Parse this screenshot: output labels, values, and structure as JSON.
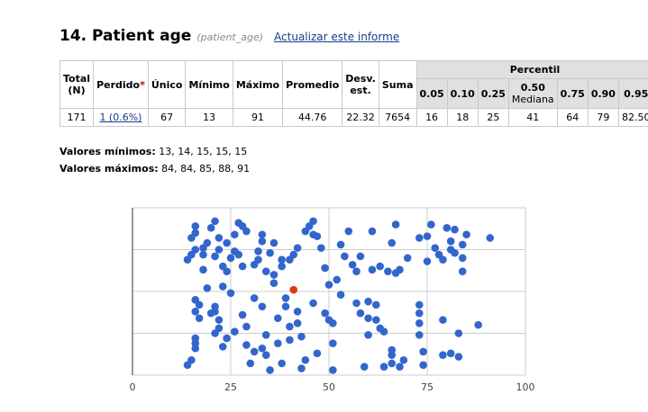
{
  "header": {
    "title": "14. Patient age",
    "variable_name": "(patient_age)",
    "update_link": "Actualizar este informe"
  },
  "table": {
    "headers": {
      "total": "Total (N)",
      "missing": "Perdido",
      "missing_star": "*",
      "unique": "Único",
      "min": "Mínimo",
      "max": "Máximo",
      "mean": "Promedio",
      "sd": "Desv. est.",
      "sum": "Suma",
      "percentile": "Percentil",
      "q05": "0.05",
      "q10": "0.10",
      "q25": "0.25",
      "q50": "0.50",
      "q50_sub": "Mediana",
      "q75": "0.75",
      "q90": "0.90",
      "q95": "0.95"
    },
    "values": {
      "total": "171",
      "missing": "1 (0.6%)",
      "unique": "67",
      "min": "13",
      "max": "91",
      "mean": "44.76",
      "sd": "22.32",
      "sum": "7654",
      "q05": "16",
      "q10": "18",
      "q25": "25",
      "q50": "41",
      "q75": "64",
      "q90": "79",
      "q95": "82.50"
    }
  },
  "extremes": {
    "min_label": "Valores mínimos:",
    "min_values": "13, 14, 15, 15, 15",
    "max_label": "Valores máximos:",
    "max_values": "84, 84, 85, 88, 91"
  },
  "chart_data": {
    "type": "scatter",
    "xlim": [
      0,
      100
    ],
    "xticks": [
      "0",
      "25",
      "50",
      "75",
      "100"
    ],
    "grid": true,
    "point_color": "#3366cc",
    "highlight_color": "#dc3912",
    "highlight": {
      "x": 41,
      "y": 0.51
    },
    "points": [
      {
        "x": 14,
        "y": 0.06
      },
      {
        "x": 15,
        "y": 0.09
      },
      {
        "x": 16,
        "y": 0.16
      },
      {
        "x": 16,
        "y": 0.19
      },
      {
        "x": 16,
        "y": 0.22
      },
      {
        "x": 17,
        "y": 0.34
      },
      {
        "x": 16,
        "y": 0.38
      },
      {
        "x": 17,
        "y": 0.42
      },
      {
        "x": 16,
        "y": 0.45
      },
      {
        "x": 14,
        "y": 0.69
      },
      {
        "x": 15,
        "y": 0.72
      },
      {
        "x": 16,
        "y": 0.75
      },
      {
        "x": 15,
        "y": 0.82
      },
      {
        "x": 16,
        "y": 0.85
      },
      {
        "x": 16,
        "y": 0.89
      },
      {
        "x": 19,
        "y": 0.52
      },
      {
        "x": 18,
        "y": 0.63
      },
      {
        "x": 18,
        "y": 0.72
      },
      {
        "x": 18,
        "y": 0.76
      },
      {
        "x": 19,
        "y": 0.79
      },
      {
        "x": 20,
        "y": 0.37
      },
      {
        "x": 21,
        "y": 0.38
      },
      {
        "x": 21,
        "y": 0.41
      },
      {
        "x": 22,
        "y": 0.28
      },
      {
        "x": 21,
        "y": 0.25
      },
      {
        "x": 22,
        "y": 0.33
      },
      {
        "x": 20,
        "y": 0.88
      },
      {
        "x": 21,
        "y": 0.92
      },
      {
        "x": 22,
        "y": 0.82
      },
      {
        "x": 22,
        "y": 0.75
      },
      {
        "x": 21,
        "y": 0.71
      },
      {
        "x": 23,
        "y": 0.65
      },
      {
        "x": 24,
        "y": 0.62
      },
      {
        "x": 24,
        "y": 0.79
      },
      {
        "x": 23,
        "y": 0.53
      },
      {
        "x": 23,
        "y": 0.17
      },
      {
        "x": 24,
        "y": 0.22
      },
      {
        "x": 26,
        "y": 0.26
      },
      {
        "x": 25,
        "y": 0.49
      },
      {
        "x": 25,
        "y": 0.7
      },
      {
        "x": 26,
        "y": 0.74
      },
      {
        "x": 26,
        "y": 0.84
      },
      {
        "x": 27,
        "y": 0.72
      },
      {
        "x": 28,
        "y": 0.65
      },
      {
        "x": 27,
        "y": 0.91
      },
      {
        "x": 28,
        "y": 0.89
      },
      {
        "x": 29,
        "y": 0.86
      },
      {
        "x": 28,
        "y": 0.36
      },
      {
        "x": 29,
        "y": 0.29
      },
      {
        "x": 29,
        "y": 0.18
      },
      {
        "x": 30,
        "y": 0.07
      },
      {
        "x": 31,
        "y": 0.14
      },
      {
        "x": 31,
        "y": 0.46
      },
      {
        "x": 31,
        "y": 0.66
      },
      {
        "x": 32,
        "y": 0.69
      },
      {
        "x": 32,
        "y": 0.74
      },
      {
        "x": 33,
        "y": 0.84
      },
      {
        "x": 33,
        "y": 0.8
      },
      {
        "x": 34,
        "y": 0.62
      },
      {
        "x": 33,
        "y": 0.41
      },
      {
        "x": 34,
        "y": 0.24
      },
      {
        "x": 33,
        "y": 0.16
      },
      {
        "x": 34,
        "y": 0.12
      },
      {
        "x": 35,
        "y": 0.03
      },
      {
        "x": 36,
        "y": 0.55
      },
      {
        "x": 36,
        "y": 0.6
      },
      {
        "x": 36,
        "y": 0.79
      },
      {
        "x": 35,
        "y": 0.73
      },
      {
        "x": 37,
        "y": 0.34
      },
      {
        "x": 38,
        "y": 0.07
      },
      {
        "x": 37,
        "y": 0.19
      },
      {
        "x": 38,
        "y": 0.65
      },
      {
        "x": 38,
        "y": 0.69
      },
      {
        "x": 39,
        "y": 0.46
      },
      {
        "x": 39,
        "y": 0.41
      },
      {
        "x": 40,
        "y": 0.29
      },
      {
        "x": 40,
        "y": 0.21
      },
      {
        "x": 40,
        "y": 0.69
      },
      {
        "x": 41,
        "y": 0.72
      },
      {
        "x": 42,
        "y": 0.76
      },
      {
        "x": 42,
        "y": 0.38
      },
      {
        "x": 42,
        "y": 0.31
      },
      {
        "x": 43,
        "y": 0.04
      },
      {
        "x": 43,
        "y": 0.23
      },
      {
        "x": 44,
        "y": 0.09
      },
      {
        "x": 44,
        "y": 0.86
      },
      {
        "x": 45,
        "y": 0.89
      },
      {
        "x": 46,
        "y": 0.84
      },
      {
        "x": 46,
        "y": 0.92
      },
      {
        "x": 47,
        "y": 0.83
      },
      {
        "x": 46,
        "y": 0.43
      },
      {
        "x": 47,
        "y": 0.13
      },
      {
        "x": 48,
        "y": 0.76
      },
      {
        "x": 49,
        "y": 0.64
      },
      {
        "x": 50,
        "y": 0.54
      },
      {
        "x": 49,
        "y": 0.37
      },
      {
        "x": 50,
        "y": 0.33
      },
      {
        "x": 51,
        "y": 0.31
      },
      {
        "x": 51,
        "y": 0.19
      },
      {
        "x": 51,
        "y": 0.03
      },
      {
        "x": 52,
        "y": 0.57
      },
      {
        "x": 53,
        "y": 0.78
      },
      {
        "x": 53,
        "y": 0.48
      },
      {
        "x": 54,
        "y": 0.71
      },
      {
        "x": 55,
        "y": 0.86
      },
      {
        "x": 56,
        "y": 0.66
      },
      {
        "x": 57,
        "y": 0.62
      },
      {
        "x": 57,
        "y": 0.43
      },
      {
        "x": 58,
        "y": 0.37
      },
      {
        "x": 58,
        "y": 0.71
      },
      {
        "x": 59,
        "y": 0.05
      },
      {
        "x": 60,
        "y": 0.24
      },
      {
        "x": 60,
        "y": 0.34
      },
      {
        "x": 60,
        "y": 0.44
      },
      {
        "x": 61,
        "y": 0.86
      },
      {
        "x": 61,
        "y": 0.63
      },
      {
        "x": 62,
        "y": 0.42
      },
      {
        "x": 62,
        "y": 0.33
      },
      {
        "x": 63,
        "y": 0.65
      },
      {
        "x": 63,
        "y": 0.28
      },
      {
        "x": 64,
        "y": 0.05
      },
      {
        "x": 64,
        "y": 0.26
      },
      {
        "x": 65,
        "y": 0.62
      },
      {
        "x": 66,
        "y": 0.79
      },
      {
        "x": 66,
        "y": 0.07
      },
      {
        "x": 66,
        "y": 0.12
      },
      {
        "x": 66,
        "y": 0.15
      },
      {
        "x": 67,
        "y": 0.9
      },
      {
        "x": 67,
        "y": 0.61
      },
      {
        "x": 68,
        "y": 0.63
      },
      {
        "x": 68,
        "y": 0.05
      },
      {
        "x": 69,
        "y": 0.09
      },
      {
        "x": 70,
        "y": 0.7
      },
      {
        "x": 73,
        "y": 0.82
      },
      {
        "x": 73,
        "y": 0.42
      },
      {
        "x": 73,
        "y": 0.37
      },
      {
        "x": 73,
        "y": 0.31
      },
      {
        "x": 73,
        "y": 0.24
      },
      {
        "x": 74,
        "y": 0.14
      },
      {
        "x": 74,
        "y": 0.06
      },
      {
        "x": 75,
        "y": 0.68
      },
      {
        "x": 75,
        "y": 0.83
      },
      {
        "x": 76,
        "y": 0.9
      },
      {
        "x": 77,
        "y": 0.76
      },
      {
        "x": 78,
        "y": 0.72
      },
      {
        "x": 79,
        "y": 0.33
      },
      {
        "x": 79,
        "y": 0.12
      },
      {
        "x": 79,
        "y": 0.69
      },
      {
        "x": 80,
        "y": 0.88
      },
      {
        "x": 81,
        "y": 0.8
      },
      {
        "x": 81,
        "y": 0.75
      },
      {
        "x": 81,
        "y": 0.13
      },
      {
        "x": 82,
        "y": 0.87
      },
      {
        "x": 82,
        "y": 0.73
      },
      {
        "x": 83,
        "y": 0.25
      },
      {
        "x": 83,
        "y": 0.11
      },
      {
        "x": 84,
        "y": 0.78
      },
      {
        "x": 84,
        "y": 0.7
      },
      {
        "x": 84,
        "y": 0.62
      },
      {
        "x": 85,
        "y": 0.84
      },
      {
        "x": 88,
        "y": 0.3
      },
      {
        "x": 91,
        "y": 0.82
      }
    ]
  }
}
